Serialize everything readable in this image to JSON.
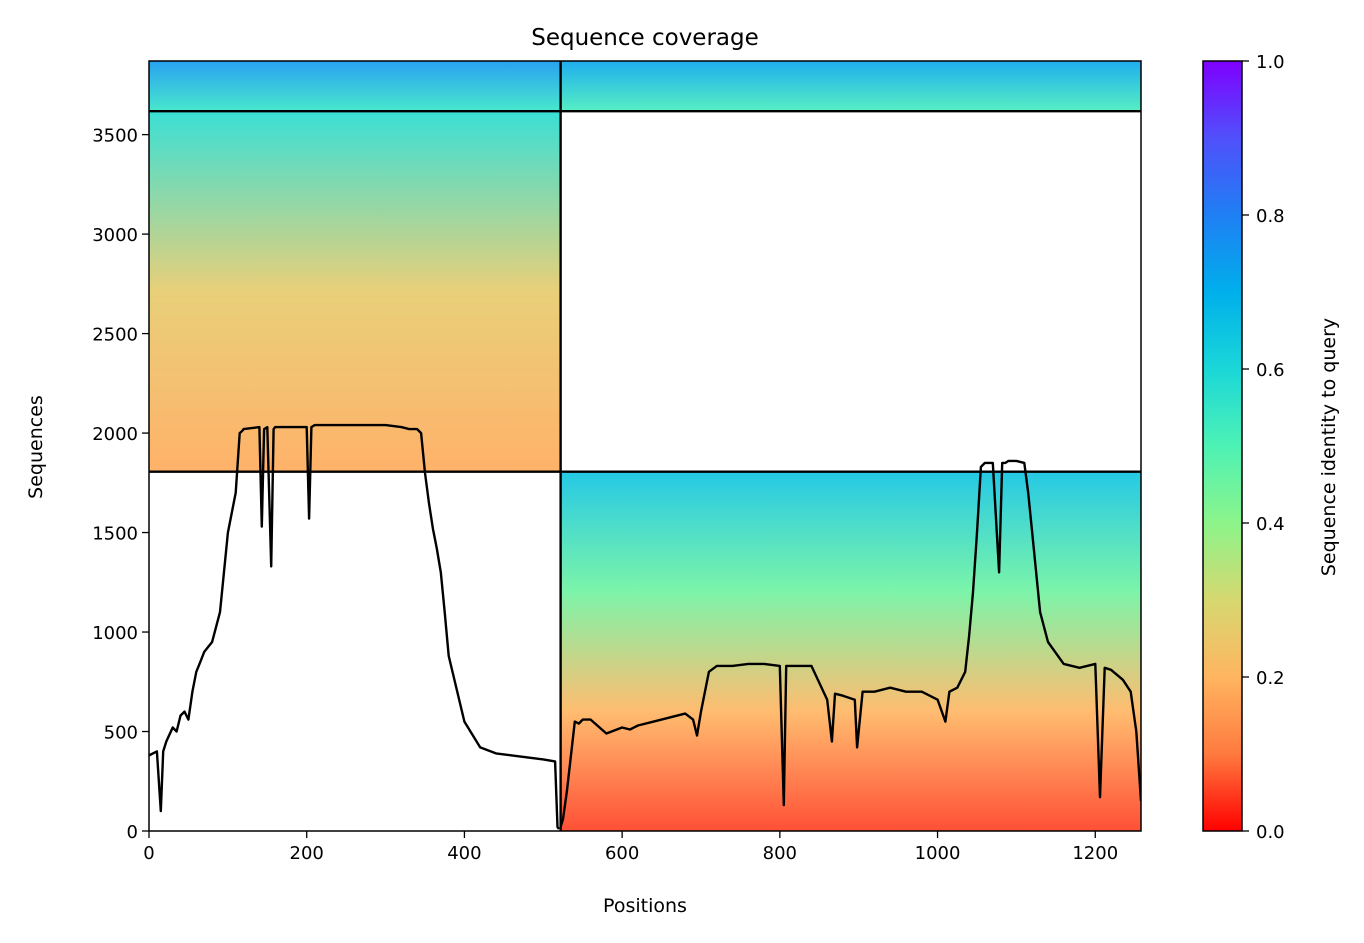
{
  "chart_data": {
    "type": "heatmap",
    "title": "Sequence coverage",
    "xlabel": "Positions",
    "ylabel": "Sequences",
    "xlim": [
      0,
      1258
    ],
    "ylim": [
      0,
      3870
    ],
    "xticks": [
      0,
      200,
      400,
      600,
      800,
      1000,
      1200
    ],
    "yticks": [
      0,
      500,
      1000,
      1500,
      2000,
      2500,
      3000,
      3500
    ],
    "grid": false,
    "colorbar": {
      "label": "Sequence identity to query",
      "range": [
        0,
        1
      ],
      "ticks": [
        "0.0",
        "0.2",
        "0.4",
        "0.6",
        "0.8",
        "1.0"
      ],
      "colormap": "rainbow_r",
      "stops": [
        "#ff0000",
        "#ff7a3f",
        "#ffb560",
        "#d6d870",
        "#8cf48a",
        "#4df2b5",
        "#1ad7d8",
        "#00afeb",
        "#1f7ff4",
        "#5050fb",
        "#7f00ff"
      ]
    },
    "chain_boundaries": {
      "x": [
        522
      ],
      "y": [
        1806,
        3618
      ]
    },
    "blocks": [
      {
        "name": "chain-a-msa",
        "x": [
          0,
          522
        ],
        "y": [
          1806,
          3618
        ],
        "identity_gradient": [
          0.18,
          0.26,
          0.58
        ]
      },
      {
        "name": "chain-a-query-rows",
        "x": [
          0,
          522
        ],
        "y": [
          3618,
          3870
        ],
        "identity_gradient": [
          0.55,
          0.75
        ]
      },
      {
        "name": "chain-b-query-rows",
        "x": [
          522,
          1258
        ],
        "y": [
          3618,
          3870
        ],
        "identity_gradient": [
          0.52,
          0.72
        ]
      },
      {
        "name": "chain-b-msa",
        "x": [
          522,
          1258
        ],
        "y": [
          0,
          1806
        ],
        "identity_gradient": [
          0.05,
          0.2,
          0.45,
          0.65
        ]
      }
    ],
    "series": [
      {
        "x": [
          0,
          10,
          15,
          18,
          22,
          30,
          35,
          40,
          45,
          50,
          55,
          60,
          65,
          70,
          80,
          90,
          100,
          110,
          115,
          118,
          120,
          140,
          143,
          146,
          150,
          155,
          158,
          160,
          200,
          203,
          206,
          210,
          240,
          250,
          300,
          320,
          330,
          340,
          345,
          350,
          355,
          360,
          365,
          370,
          375,
          380,
          400,
          420,
          440,
          480,
          500,
          515,
          518,
          520
        ],
        "y": [
          380,
          400,
          100,
          400,
          450,
          520,
          500,
          580,
          600,
          560,
          700,
          800,
          850,
          900,
          950,
          1100,
          1500,
          1700,
          2000,
          2010,
          2020,
          2030,
          1530,
          2020,
          2030,
          1330,
          2020,
          2030,
          2030,
          1570,
          2030,
          2040,
          2040,
          2040,
          2040,
          2030,
          2020,
          2020,
          2000,
          1800,
          1650,
          1520,
          1420,
          1300,
          1100,
          880,
          550,
          420,
          390,
          370,
          360,
          350,
          20,
          10
        ]
      },
      {
        "x": [
          522,
          525,
          530,
          540,
          545,
          550,
          560,
          580,
          600,
          610,
          620,
          640,
          660,
          680,
          690,
          695,
          700,
          710,
          720,
          740,
          760,
          780,
          800,
          805,
          808,
          812,
          820,
          840,
          860,
          866,
          870,
          880,
          895,
          898,
          905,
          920,
          940,
          960,
          980,
          1000,
          1010,
          1015,
          1025,
          1035,
          1040,
          1045,
          1050,
          1055,
          1060,
          1070,
          1078,
          1082,
          1086,
          1090,
          1095,
          1100,
          1110,
          1115,
          1120,
          1130,
          1140,
          1160,
          1180,
          1200,
          1206,
          1212,
          1220,
          1235,
          1245,
          1252,
          1258
        ],
        "y": [
          20,
          60,
          200,
          550,
          540,
          560,
          560,
          490,
          520,
          510,
          530,
          550,
          570,
          590,
          560,
          480,
          600,
          800,
          830,
          830,
          840,
          840,
          830,
          130,
          830,
          830,
          830,
          830,
          660,
          450,
          690,
          680,
          660,
          420,
          700,
          700,
          720,
          700,
          700,
          660,
          550,
          700,
          720,
          800,
          980,
          1200,
          1500,
          1830,
          1850,
          1850,
          1300,
          1850,
          1850,
          1860,
          1860,
          1860,
          1850,
          1700,
          1500,
          1100,
          950,
          840,
          820,
          840,
          170,
          820,
          810,
          760,
          700,
          500,
          150
        ]
      }
    ]
  }
}
